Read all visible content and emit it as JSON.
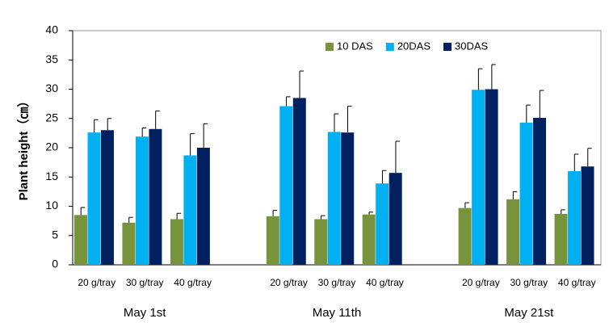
{
  "chart_data": {
    "type": "bar",
    "ylabel": "Plant height（㎝）",
    "ylim": [
      0,
      40
    ],
    "yticks": [
      0,
      5,
      10,
      15,
      20,
      25,
      30,
      35,
      40
    ],
    "grid": false,
    "legend": "top-right",
    "groups": [
      "May 1st",
      "May 11th",
      "May 21st"
    ],
    "categories": [
      "20 g/tray",
      "30 g/tray",
      "40 g/tray",
      "20 g/tray",
      "30 g/tray",
      "40 g/tray",
      "20 g/tray",
      "30 g/tray",
      "40 g/tray"
    ],
    "series": [
      {
        "name": "10 DAS",
        "color": "#77933c",
        "values": [
          8.5,
          7.2,
          7.8,
          8.3,
          7.8,
          8.6,
          9.7,
          11.2,
          8.7
        ],
        "errors": [
          1.3,
          0.9,
          1.0,
          1.0,
          0.6,
          0.4,
          0.9,
          1.3,
          0.7
        ]
      },
      {
        "name": "20DAS",
        "color": "#00b0f0",
        "values": [
          22.6,
          21.9,
          18.7,
          27.1,
          22.7,
          13.9,
          29.9,
          24.3,
          16.0
        ],
        "errors": [
          2.2,
          1.5,
          3.7,
          1.6,
          3.1,
          2.2,
          3.6,
          3.0,
          2.9
        ]
      },
      {
        "name": "30DAS",
        "color": "#002060",
        "values": [
          23.0,
          23.2,
          20.0,
          28.5,
          22.6,
          15.7,
          30.0,
          25.1,
          16.8
        ],
        "errors": [
          2.0,
          3.1,
          4.1,
          4.6,
          4.5,
          5.4,
          4.2,
          4.7,
          3.1
        ]
      }
    ]
  }
}
